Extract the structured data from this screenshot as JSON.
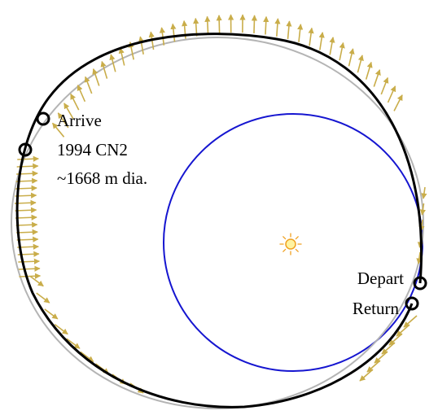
{
  "labels": {
    "arrive": "Arrive",
    "asteroid_name": "1994 CN2",
    "asteroid_size": "~1668 m dia.",
    "depart": "Depart",
    "return": "Return"
  },
  "colors": {
    "earth_orbit": "#1515d0",
    "asteroid_orbit": "#b4b4b4",
    "transfer_path": "#000000",
    "thrust_arrows": "#c9ad4a",
    "sun": "#f0a020",
    "markers": "#000000"
  },
  "icons": {
    "sun": "sun-icon",
    "marker": "circle-marker-icon"
  }
}
